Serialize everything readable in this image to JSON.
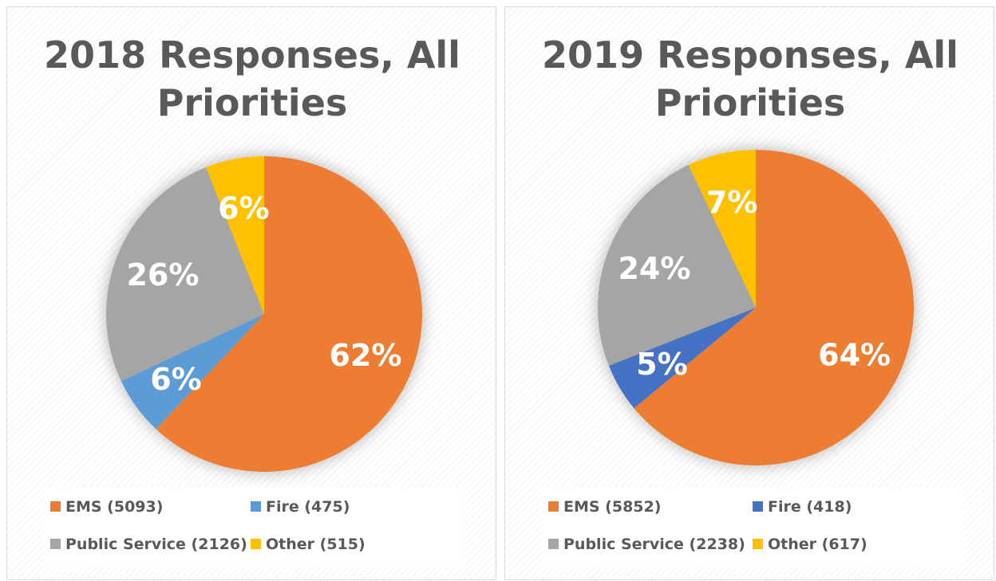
{
  "chart_data": [
    {
      "type": "pie",
      "title": "2018 Responses, All Priorities",
      "categories": [
        "EMS (5093)",
        "Fire (475)",
        "Public Service (2126)",
        "Other (515)"
      ],
      "values": [
        62,
        6,
        26,
        6
      ],
      "value_labels": [
        "62%",
        "6%",
        "26%",
        "6%"
      ],
      "colors": [
        "#ed7d31",
        "#5b9bd5",
        "#a5a5a5",
        "#ffc000"
      ]
    },
    {
      "type": "pie",
      "title": "2019 Responses, All Priorities",
      "categories": [
        "EMS (5852)",
        "Fire (418)",
        "Public Service (2238)",
        "Other (617)"
      ],
      "values": [
        64,
        5,
        24,
        7
      ],
      "value_labels": [
        "64%",
        "5%",
        "24%",
        "7%"
      ],
      "colors": [
        "#ed7d31",
        "#4472c4",
        "#a5a5a5",
        "#ffc000"
      ]
    }
  ]
}
